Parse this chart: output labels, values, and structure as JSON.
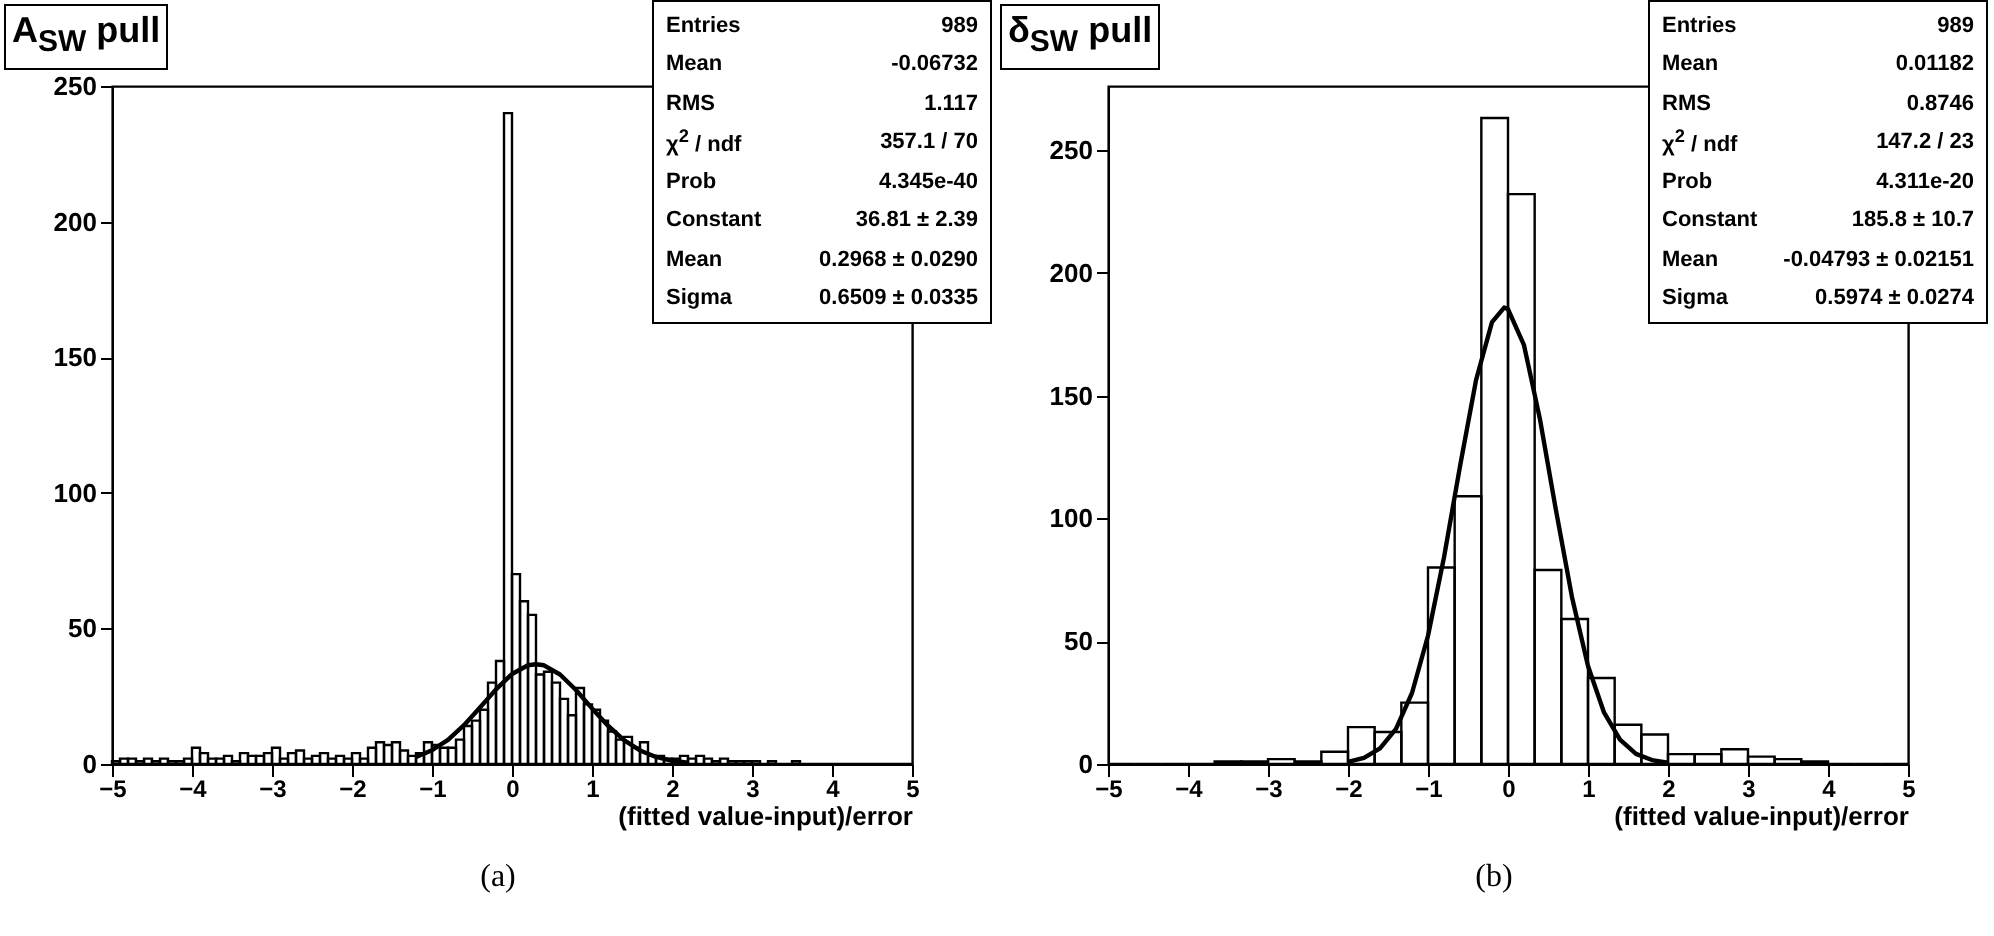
{
  "chart_data": [
    {
      "type": "histogram",
      "title": "A$_{SW}$ pull",
      "xlabel": "(fitted value-input)/error",
      "color": "#000000",
      "bins": [
        -5,
        -4.9,
        -4.8,
        -4.7,
        -4.6,
        -4.5,
        -4.4,
        -4.3,
        -4.2,
        -4.1,
        -4,
        -3.9,
        -3.8,
        -3.7,
        -3.6,
        -3.5,
        -3.4,
        -3.3,
        -3.2,
        -3.1,
        -3,
        -2.9,
        -2.8,
        -2.7,
        -2.6,
        -2.5,
        -2.4,
        -2.3,
        -2.2,
        -2.1,
        -2,
        -1.9,
        -1.8,
        -1.7,
        -1.6,
        -1.5,
        -1.4,
        -1.3,
        -1.2,
        -1.1,
        -1,
        -0.9,
        -0.8,
        -0.7,
        -0.6,
        -0.5,
        -0.4,
        -0.3,
        -0.2,
        -0.1,
        0,
        0.1,
        0.2,
        0.3,
        0.4,
        0.5,
        0.6,
        0.7,
        0.8,
        0.9,
        1,
        1.1,
        1.2,
        1.3,
        1.4,
        1.5,
        1.6,
        1.7,
        1.8,
        1.9,
        2,
        2.1,
        2.2,
        2.3,
        2.4,
        2.5,
        2.6,
        2.7,
        2.8,
        2.9,
        3,
        3.1,
        3.2,
        3.3,
        3.4,
        3.5,
        3.6,
        3.7,
        3.8,
        3.9,
        4,
        4.1,
        4.2,
        4.3,
        4.4,
        4.5,
        4.6,
        4.7,
        4.8,
        4.9,
        5
      ],
      "values": [
        1,
        2,
        2,
        1,
        2,
        1,
        2,
        1,
        1,
        2,
        6,
        4,
        2,
        2,
        3,
        1,
        4,
        3,
        3,
        4,
        6,
        2,
        4,
        5,
        2,
        3,
        4,
        2,
        3,
        2,
        4,
        2,
        6,
        8,
        7,
        8,
        5,
        3,
        4,
        8,
        7,
        6,
        6,
        9,
        14,
        16,
        20,
        30,
        38,
        240,
        70,
        60,
        55,
        33,
        34,
        30,
        24,
        18,
        28,
        22,
        20,
        16,
        12,
        9,
        10,
        6,
        8,
        3,
        3,
        2,
        2,
        3,
        2,
        3,
        2,
        1,
        2,
        1,
        1,
        1,
        1,
        0,
        1,
        0,
        0,
        1,
        0,
        0,
        0,
        0,
        0,
        0,
        0,
        0,
        0,
        0,
        0,
        0,
        0,
        0
      ],
      "series": [
        {
          "type": "line",
          "color": "#000000",
          "x": [
            -1.2,
            -1,
            -0.8,
            -0.6,
            -0.4,
            -0.2,
            0,
            0.2,
            0.3,
            0.4,
            0.6,
            0.8,
            1,
            1.2,
            1.4,
            1.6,
            1.8,
            2,
            2.2
          ],
          "values": [
            2.6,
            5.1,
            8.9,
            14.3,
            20.8,
            27.5,
            33.2,
            36.4,
            36.8,
            36.4,
            33,
            27.3,
            20.5,
            14.1,
            8.8,
            5,
            2.6,
            1.2,
            0.5
          ]
        }
      ],
      "xlim": [
        -5,
        5
      ],
      "xticks": [
        -5,
        -4,
        -3,
        -2,
        -1,
        0,
        1,
        2,
        3,
        4,
        5
      ],
      "ylim": [
        0,
        250
      ],
      "yticks": [
        0,
        50,
        100,
        150,
        200,
        250
      ],
      "annotations": [
        "Entries\t989",
        "Mean\t-0.06732",
        "RMS\t1.117",
        "χ$^{2}$ / ndf\t357.1 / 70",
        "Prob\t4.345e-40",
        "Constant\t36.81 ± 2.39",
        "Mean\t0.2968 ± 0.0290",
        "Sigma\t0.6509 ± 0.0335",
        "(a)"
      ]
    },
    {
      "type": "histogram",
      "title": "δ$_{SW}$ pull",
      "xlabel": "(fitted value-input)/error",
      "color": "#000000",
      "bins": [
        -5,
        -4.6667,
        -4.3333,
        -4,
        -3.6667,
        -3.3333,
        -3,
        -2.6667,
        -2.3333,
        -2,
        -1.6667,
        -1.3333,
        -1,
        -0.6667,
        -0.3333,
        0,
        0.3333,
        0.6667,
        1,
        1.3333,
        1.6667,
        2,
        2.3333,
        2.6667,
        3,
        3.3333,
        3.6667,
        4,
        4.3333,
        4.6667,
        5
      ],
      "values": [
        0,
        0,
        0,
        0,
        1,
        1,
        2,
        1,
        5,
        15,
        13,
        25,
        80,
        109,
        263,
        232,
        79,
        59,
        35,
        16,
        12,
        4,
        4,
        6,
        3,
        2,
        1,
        0,
        0,
        0
      ],
      "series": [
        {
          "type": "line",
          "color": "#000000",
          "x": [
            -2,
            -1.8,
            -1.6,
            -1.4,
            -1.2,
            -1,
            -0.8,
            -0.6,
            -0.4,
            -0.2,
            -0.048,
            0,
            0.2,
            0.4,
            0.6,
            0.8,
            1,
            1.2,
            1.4,
            1.6,
            1.8,
            2
          ],
          "values": [
            0.9,
            2.5,
            6.4,
            14.3,
            28.9,
            52.2,
            84.1,
            121.2,
            156.2,
            179.9,
            185.8,
            185.2,
            170.5,
            140.3,
            103.2,
            67.9,
            39.9,
            21,
            9.9,
            4.1,
            1.6,
            0.5
          ]
        }
      ],
      "xlim": [
        -5,
        5
      ],
      "xticks": [
        -5,
        -4,
        -3,
        -2,
        -1,
        0,
        1,
        2,
        3,
        4,
        5
      ],
      "ylim": [
        0,
        276
      ],
      "yticks": [
        0,
        50,
        100,
        150,
        200,
        250
      ],
      "annotations": [
        "Entries\t989",
        "Mean\t0.01182",
        "RMS\t0.8746",
        "χ$^{2}$ / ndf\t147.2 / 23",
        "Prob\t4.311e-20",
        "Constant\t185.8 ± 10.7",
        "Mean\t-0.04793 ± 0.02151",
        "Sigma\t0.5974 ± 0.0274",
        "(b)"
      ]
    }
  ]
}
